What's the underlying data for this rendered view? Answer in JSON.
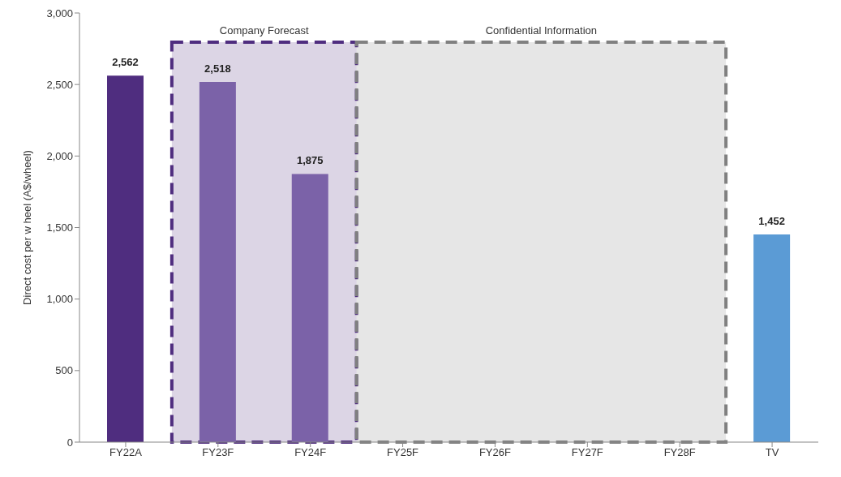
{
  "chart_data": {
    "type": "bar",
    "ylabel": "Direct cost per w heel (A$/wheel)",
    "categories": [
      "FY22A",
      "FY23F",
      "FY24F",
      "FY25F",
      "FY26F",
      "FY27F",
      "FY28F",
      "TV"
    ],
    "values": [
      2562,
      2518,
      1875,
      null,
      null,
      null,
      null,
      1452
    ],
    "value_labels": [
      "2,562",
      "2,518",
      "1,875",
      null,
      null,
      null,
      null,
      "1,452"
    ],
    "colors": [
      "#4f2d7f",
      "#7b62a8",
      "#7b62a8",
      null,
      null,
      null,
      null,
      "#5b9bd5"
    ],
    "ylim": [
      0,
      3000
    ],
    "yticks": [
      0,
      {
        "value": 500,
        "label": "500"
      },
      {
        "value": 1000,
        "label": "1,000"
      },
      {
        "value": 1500,
        "label": "1,500"
      },
      {
        "value": 2000,
        "label": "2,000"
      },
      {
        "value": 2500,
        "label": "2,500"
      },
      {
        "value": 3000,
        "label": "3,000"
      }
    ],
    "bands": [
      {
        "axis": "x",
        "from": "FY23F",
        "to": "FY24F",
        "label": "Company Forecast",
        "color": "#4f2d7f"
      },
      {
        "axis": "x",
        "from": "FY25F",
        "to": "FY28F",
        "label": "Confidential Information",
        "color": "#808080"
      }
    ]
  }
}
